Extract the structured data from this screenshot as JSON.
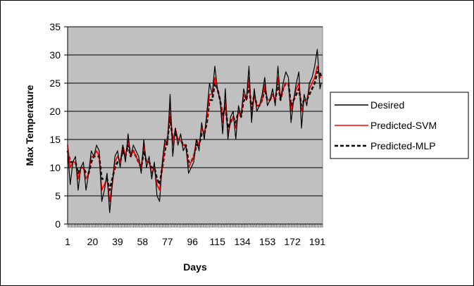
{
  "chart_data": {
    "type": "line",
    "title": "",
    "xlabel": "Days",
    "ylabel": "Max Temperature",
    "ylim": [
      0,
      35
    ],
    "yticks": [
      0,
      5,
      10,
      15,
      20,
      25,
      30,
      35
    ],
    "xlim": [
      1,
      195
    ],
    "xticks": [
      "1",
      "20",
      "39",
      "58",
      "77",
      "96",
      "115",
      "134",
      "153",
      "172",
      "191"
    ],
    "grid": "horizontal",
    "legend_position": "right",
    "plot_background": "#C0C0C0",
    "series": [
      {
        "name": "Desired",
        "color": "#000000",
        "dash": "solid",
        "x": [
          1,
          3,
          5,
          7,
          9,
          11,
          13,
          15,
          17,
          19,
          21,
          23,
          25,
          27,
          29,
          31,
          33,
          35,
          37,
          39,
          41,
          43,
          45,
          47,
          49,
          51,
          53,
          55,
          57,
          59,
          61,
          63,
          65,
          67,
          69,
          71,
          73,
          75,
          77,
          79,
          81,
          83,
          85,
          87,
          89,
          91,
          93,
          95,
          97,
          99,
          101,
          103,
          105,
          107,
          109,
          111,
          113,
          115,
          117,
          119,
          121,
          123,
          125,
          127,
          129,
          131,
          133,
          135,
          137,
          139,
          141,
          143,
          145,
          147,
          149,
          151,
          153,
          155,
          157,
          159,
          161,
          163,
          165,
          167,
          169,
          171,
          173,
          175,
          177,
          179,
          181,
          183,
          185,
          187,
          189,
          191,
          193,
          194
        ],
        "values": [
          13,
          7,
          11,
          12,
          6,
          10,
          11,
          6,
          9,
          13,
          12,
          14,
          13,
          4,
          6,
          9,
          2,
          7,
          12,
          13,
          10,
          14,
          11,
          16,
          12,
          14,
          13,
          12,
          9,
          15,
          10,
          12,
          8,
          11,
          5,
          4,
          11,
          15,
          14,
          23,
          12,
          17,
          14,
          16,
          13,
          14,
          9,
          10,
          11,
          15,
          13,
          18,
          15,
          20,
          25,
          23,
          28,
          24,
          22,
          16,
          24,
          15,
          19,
          20,
          15,
          21,
          19,
          24,
          22,
          28,
          18,
          24,
          20,
          21,
          23,
          26,
          21,
          22,
          24,
          21,
          28,
          22,
          25,
          27,
          26,
          18,
          22,
          25,
          27,
          17,
          23,
          21,
          25,
          26,
          28,
          31,
          24,
          25
        ]
      },
      {
        "name": "Predicted-SVM",
        "color": "#FF0000",
        "dash": "solid",
        "x": [
          1,
          3,
          5,
          7,
          9,
          11,
          13,
          15,
          17,
          19,
          21,
          23,
          25,
          27,
          29,
          31,
          33,
          35,
          37,
          39,
          41,
          43,
          45,
          47,
          49,
          51,
          53,
          55,
          57,
          59,
          61,
          63,
          65,
          67,
          69,
          71,
          73,
          75,
          77,
          79,
          81,
          83,
          85,
          87,
          89,
          91,
          93,
          95,
          97,
          99,
          101,
          103,
          105,
          107,
          109,
          111,
          113,
          115,
          117,
          119,
          121,
          123,
          125,
          127,
          129,
          131,
          133,
          135,
          137,
          139,
          141,
          143,
          145,
          147,
          149,
          151,
          153,
          155,
          157,
          159,
          161,
          163,
          165,
          167,
          169,
          171,
          173,
          175,
          177,
          179,
          181,
          183,
          185,
          187,
          189,
          191,
          193,
          194
        ],
        "values": [
          14,
          10,
          11,
          11,
          8,
          10,
          10,
          8,
          9,
          12,
          12,
          13,
          12,
          6,
          7,
          8,
          4,
          7,
          11,
          12,
          11,
          14,
          12,
          15,
          12,
          13,
          12,
          11,
          10,
          14,
          11,
          11,
          9,
          10,
          7,
          6,
          10,
          14,
          15,
          21,
          14,
          17,
          15,
          15,
          14,
          14,
          10,
          11,
          12,
          15,
          14,
          17,
          16,
          19,
          23,
          23,
          26,
          24,
          22,
          18,
          22,
          16,
          18,
          19,
          17,
          20,
          19,
          23,
          22,
          26,
          19,
          23,
          21,
          21,
          22,
          25,
          22,
          22,
          23,
          22,
          26,
          22,
          24,
          25,
          25,
          20,
          22,
          24,
          25,
          20,
          22,
          22,
          24,
          25,
          26,
          28,
          26,
          26
        ]
      },
      {
        "name": "Predicted-MLP",
        "color": "#000000",
        "dash": "dashed",
        "x": [
          1,
          3,
          5,
          7,
          9,
          11,
          13,
          15,
          17,
          19,
          21,
          23,
          25,
          27,
          29,
          31,
          33,
          35,
          37,
          39,
          41,
          43,
          45,
          47,
          49,
          51,
          53,
          55,
          57,
          59,
          61,
          63,
          65,
          67,
          69,
          71,
          73,
          75,
          77,
          79,
          81,
          83,
          85,
          87,
          89,
          91,
          93,
          95,
          97,
          99,
          101,
          103,
          105,
          107,
          109,
          111,
          113,
          115,
          117,
          119,
          121,
          123,
          125,
          127,
          129,
          131,
          133,
          135,
          137,
          139,
          141,
          143,
          145,
          147,
          149,
          151,
          153,
          155,
          157,
          159,
          161,
          163,
          165,
          167,
          169,
          171,
          173,
          175,
          177,
          179,
          181,
          183,
          185,
          187,
          189,
          191,
          193,
          194
        ],
        "values": [
          13,
          11,
          11,
          11,
          9,
          10,
          10,
          9,
          9,
          11,
          12,
          12,
          12,
          8,
          8,
          8,
          6,
          8,
          10,
          11,
          11,
          13,
          12,
          14,
          12,
          13,
          12,
          11,
          10,
          13,
          11,
          11,
          10,
          10,
          8,
          7,
          10,
          13,
          15,
          19,
          15,
          16,
          15,
          15,
          14,
          14,
          11,
          11,
          12,
          14,
          14,
          16,
          16,
          18,
          22,
          22,
          25,
          24,
          22,
          19,
          21,
          17,
          18,
          19,
          18,
          20,
          19,
          22,
          22,
          25,
          20,
          23,
          21,
          21,
          22,
          24,
          22,
          22,
          23,
          22,
          25,
          22,
          24,
          25,
          25,
          21,
          22,
          23,
          24,
          21,
          22,
          22,
          23,
          24,
          25,
          27,
          27,
          26
        ]
      }
    ]
  }
}
